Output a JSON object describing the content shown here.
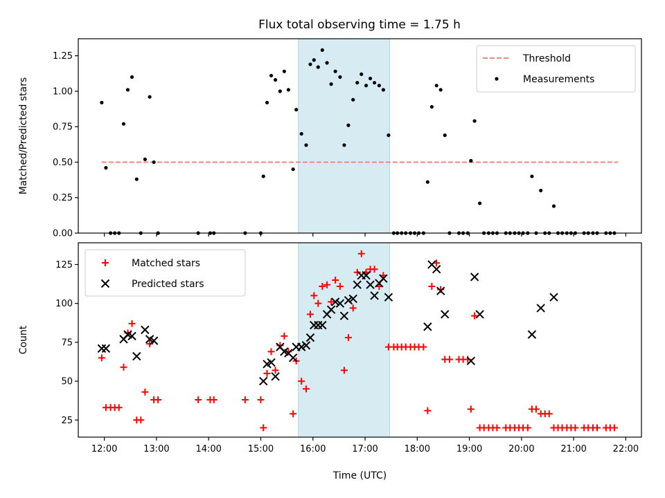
{
  "title": "Flux total observing time = 1.75 h",
  "chart_data": [
    {
      "type": "scatter",
      "ylabel": "Matched/Predicted stars",
      "xlim": [
        11.5,
        22.3
      ],
      "ylim": [
        0,
        1.37
      ],
      "yticks": [
        0,
        0.25,
        0.5,
        0.75,
        1.0,
        1.25
      ],
      "ytick_labels": [
        "0.00",
        "0.25",
        "0.50",
        "0.75",
        "1.00",
        "1.25"
      ],
      "shaded_region": [
        15.72,
        17.47
      ],
      "threshold": {
        "label": "Threshold",
        "y": 0.5,
        "x": [
          11.95,
          21.85
        ],
        "color": "#ff7f7f"
      },
      "legend": {
        "placement": "top-right",
        "entries": [
          "Threshold",
          "Measurements"
        ]
      },
      "series": [
        {
          "name": "Measurements",
          "color": "#000000",
          "points": [
            [
              11.95,
              0.92
            ],
            [
              12.03,
              0.46
            ],
            [
              12.12,
              0
            ],
            [
              12.2,
              0
            ],
            [
              12.28,
              0
            ],
            [
              12.37,
              0.77
            ],
            [
              12.45,
              1.01
            ],
            [
              12.53,
              1.1
            ],
            [
              12.62,
              0.38
            ],
            [
              12.7,
              0
            ],
            [
              12.78,
              0.52
            ],
            [
              12.87,
              0.96
            ],
            [
              12.95,
              0.5
            ],
            [
              13.03,
              0
            ],
            [
              13.8,
              0
            ],
            [
              14.03,
              0
            ],
            [
              14.1,
              0
            ],
            [
              14.7,
              0
            ],
            [
              15.0,
              0
            ],
            [
              15.05,
              0.4
            ],
            [
              15.12,
              0.92
            ],
            [
              15.2,
              1.11
            ],
            [
              15.28,
              1.08
            ],
            [
              15.37,
              1.0
            ],
            [
              15.45,
              1.14
            ],
            [
              15.53,
              1.01
            ],
            [
              15.62,
              0.45
            ],
            [
              15.68,
              0.87
            ],
            [
              15.78,
              0.7
            ],
            [
              15.87,
              0.62
            ],
            [
              15.95,
              1.19
            ],
            [
              16.02,
              1.22
            ],
            [
              16.1,
              1.17
            ],
            [
              16.18,
              1.29
            ],
            [
              16.27,
              1.2
            ],
            [
              16.35,
              1.05
            ],
            [
              16.43,
              1.14
            ],
            [
              16.52,
              1.1
            ],
            [
              16.6,
              0.62
            ],
            [
              16.68,
              0.76
            ],
            [
              16.77,
              0.94
            ],
            [
              16.85,
              1.06
            ],
            [
              16.93,
              1.12
            ],
            [
              17.02,
              1.04
            ],
            [
              17.1,
              1.09
            ],
            [
              17.18,
              1.06
            ],
            [
              17.27,
              1.04
            ],
            [
              17.35,
              1.01
            ],
            [
              17.45,
              0.69
            ],
            [
              17.55,
              0
            ],
            [
              17.62,
              0
            ],
            [
              17.7,
              0
            ],
            [
              17.78,
              0
            ],
            [
              17.87,
              0
            ],
            [
              17.95,
              0
            ],
            [
              18.03,
              0
            ],
            [
              18.12,
              0
            ],
            [
              18.2,
              0.36
            ],
            [
              18.28,
              0.89
            ],
            [
              18.37,
              1.04
            ],
            [
              18.45,
              1.01
            ],
            [
              18.53,
              0.69
            ],
            [
              18.62,
              0
            ],
            [
              18.8,
              0
            ],
            [
              18.88,
              0
            ],
            [
              18.97,
              0
            ],
            [
              19.03,
              0.51
            ],
            [
              19.1,
              0.79
            ],
            [
              19.2,
              0.21
            ],
            [
              19.28,
              0
            ],
            [
              19.37,
              0
            ],
            [
              19.45,
              0
            ],
            [
              19.53,
              0
            ],
            [
              19.7,
              0
            ],
            [
              19.78,
              0
            ],
            [
              19.87,
              0
            ],
            [
              19.95,
              0
            ],
            [
              20.03,
              0
            ],
            [
              20.12,
              0
            ],
            [
              20.2,
              0.4
            ],
            [
              20.28,
              0
            ],
            [
              20.37,
              0.3
            ],
            [
              20.45,
              0
            ],
            [
              20.53,
              0
            ],
            [
              20.62,
              0.19
            ],
            [
              20.7,
              0
            ],
            [
              20.78,
              0
            ],
            [
              20.87,
              0
            ],
            [
              20.95,
              0
            ],
            [
              21.03,
              0
            ],
            [
              21.2,
              0
            ],
            [
              21.28,
              0
            ],
            [
              21.37,
              0
            ],
            [
              21.45,
              0
            ],
            [
              21.62,
              0
            ],
            [
              21.7,
              0
            ],
            [
              21.78,
              0
            ]
          ]
        }
      ]
    },
    {
      "type": "scatter",
      "xlabel": "Time (UTC)",
      "ylabel": "Count",
      "xlim": [
        11.5,
        22.3
      ],
      "ylim": [
        14,
        139
      ],
      "xticks": [
        12,
        13,
        14,
        15,
        16,
        17,
        18,
        19,
        20,
        21,
        22
      ],
      "xtick_labels": [
        "12:00",
        "13:00",
        "14:00",
        "15:00",
        "16:00",
        "17:00",
        "18:00",
        "19:00",
        "20:00",
        "21:00",
        "22:00"
      ],
      "yticks": [
        25,
        50,
        75,
        100,
        125
      ],
      "ytick_labels": [
        "25",
        "50",
        "75",
        "100",
        "125"
      ],
      "shaded_region": [
        15.72,
        17.47
      ],
      "legend": {
        "placement": "top-left",
        "entries": [
          "Matched stars",
          "Predicted stars"
        ]
      },
      "series": [
        {
          "name": "Matched stars",
          "marker": "plus",
          "color": "#ff0000",
          "points": [
            [
              11.95,
              65
            ],
            [
              12.03,
              33
            ],
            [
              12.12,
              33
            ],
            [
              12.2,
              33
            ],
            [
              12.28,
              33
            ],
            [
              12.37,
              59
            ],
            [
              12.45,
              81
            ],
            [
              12.53,
              87
            ],
            [
              12.62,
              25
            ],
            [
              12.7,
              25
            ],
            [
              12.78,
              43
            ],
            [
              12.87,
              74
            ],
            [
              12.95,
              38
            ],
            [
              13.03,
              38
            ],
            [
              13.8,
              38
            ],
            [
              14.03,
              38
            ],
            [
              14.1,
              38
            ],
            [
              14.7,
              38
            ],
            [
              15.0,
              38
            ],
            [
              15.05,
              20
            ],
            [
              15.12,
              55
            ],
            [
              15.2,
              69
            ],
            [
              15.28,
              57
            ],
            [
              15.37,
              73
            ],
            [
              15.45,
              79
            ],
            [
              15.53,
              69
            ],
            [
              15.62,
              29
            ],
            [
              15.68,
              63
            ],
            [
              15.78,
              50
            ],
            [
              15.87,
              45
            ],
            [
              15.95,
              93
            ],
            [
              16.02,
              105
            ],
            [
              16.1,
              100
            ],
            [
              16.18,
              111
            ],
            [
              16.27,
              112
            ],
            [
              16.35,
              101
            ],
            [
              16.43,
              115
            ],
            [
              16.52,
              111
            ],
            [
              16.6,
              57
            ],
            [
              16.68,
              78
            ],
            [
              16.77,
              97
            ],
            [
              16.85,
              120
            ],
            [
              16.93,
              132
            ],
            [
              17.02,
              120
            ],
            [
              17.1,
              122
            ],
            [
              17.18,
              122
            ],
            [
              17.27,
              111
            ],
            [
              17.35,
              118
            ],
            [
              17.45,
              72
            ],
            [
              17.55,
              72
            ],
            [
              17.62,
              72
            ],
            [
              17.7,
              72
            ],
            [
              17.78,
              72
            ],
            [
              17.87,
              72
            ],
            [
              17.95,
              72
            ],
            [
              18.03,
              72
            ],
            [
              18.12,
              72
            ],
            [
              18.2,
              31
            ],
            [
              18.28,
              111
            ],
            [
              18.37,
              126
            ],
            [
              18.45,
              109
            ],
            [
              18.53,
              64
            ],
            [
              18.62,
              64
            ],
            [
              18.8,
              64
            ],
            [
              18.88,
              64
            ],
            [
              18.97,
              64
            ],
            [
              19.03,
              32
            ],
            [
              19.1,
              92
            ],
            [
              19.2,
              20
            ],
            [
              19.28,
              20
            ],
            [
              19.37,
              20
            ],
            [
              19.45,
              20
            ],
            [
              19.53,
              20
            ],
            [
              19.7,
              20
            ],
            [
              19.78,
              20
            ],
            [
              19.87,
              20
            ],
            [
              19.95,
              20
            ],
            [
              20.03,
              20
            ],
            [
              20.12,
              20
            ],
            [
              20.2,
              32
            ],
            [
              20.28,
              32
            ],
            [
              20.37,
              29
            ],
            [
              20.45,
              29
            ],
            [
              20.53,
              29
            ],
            [
              20.62,
              20
            ],
            [
              20.7,
              20
            ],
            [
              20.78,
              20
            ],
            [
              20.87,
              20
            ],
            [
              20.95,
              20
            ],
            [
              21.03,
              20
            ],
            [
              21.2,
              20
            ],
            [
              21.28,
              20
            ],
            [
              21.37,
              20
            ],
            [
              21.45,
              20
            ],
            [
              21.62,
              20
            ],
            [
              21.7,
              20
            ],
            [
              21.78,
              20
            ]
          ]
        },
        {
          "name": "Predicted stars",
          "marker": "x",
          "color": "#000000",
          "points": [
            [
              11.95,
              71
            ],
            [
              12.03,
              71
            ],
            [
              12.37,
              77
            ],
            [
              12.45,
              80
            ],
            [
              12.53,
              79
            ],
            [
              12.62,
              66
            ],
            [
              12.78,
              83
            ],
            [
              12.87,
              77
            ],
            [
              12.95,
              76
            ],
            [
              15.05,
              50
            ],
            [
              15.12,
              61
            ],
            [
              15.2,
              62
            ],
            [
              15.28,
              53
            ],
            [
              15.37,
              72
            ],
            [
              15.45,
              69
            ],
            [
              15.53,
              68
            ],
            [
              15.62,
              65
            ],
            [
              15.68,
              72
            ],
            [
              15.78,
              72
            ],
            [
              15.87,
              73
            ],
            [
              15.95,
              78
            ],
            [
              16.02,
              86
            ],
            [
              16.1,
              86
            ],
            [
              16.18,
              86
            ],
            [
              16.27,
              93
            ],
            [
              16.35,
              96
            ],
            [
              16.43,
              101
            ],
            [
              16.52,
              100
            ],
            [
              16.6,
              92
            ],
            [
              16.68,
              102
            ],
            [
              16.77,
              103
            ],
            [
              16.85,
              112
            ],
            [
              16.93,
              118
            ],
            [
              17.02,
              118
            ],
            [
              17.1,
              112
            ],
            [
              17.18,
              105
            ],
            [
              17.27,
              113
            ],
            [
              17.35,
              116
            ],
            [
              17.45,
              104
            ],
            [
              18.2,
              85
            ],
            [
              18.28,
              125
            ],
            [
              18.37,
              122
            ],
            [
              18.45,
              108
            ],
            [
              18.53,
              93
            ],
            [
              19.03,
              63
            ],
            [
              19.1,
              117
            ],
            [
              19.2,
              93
            ],
            [
              20.2,
              80
            ],
            [
              20.37,
              97
            ],
            [
              20.62,
              104
            ]
          ]
        }
      ]
    }
  ]
}
